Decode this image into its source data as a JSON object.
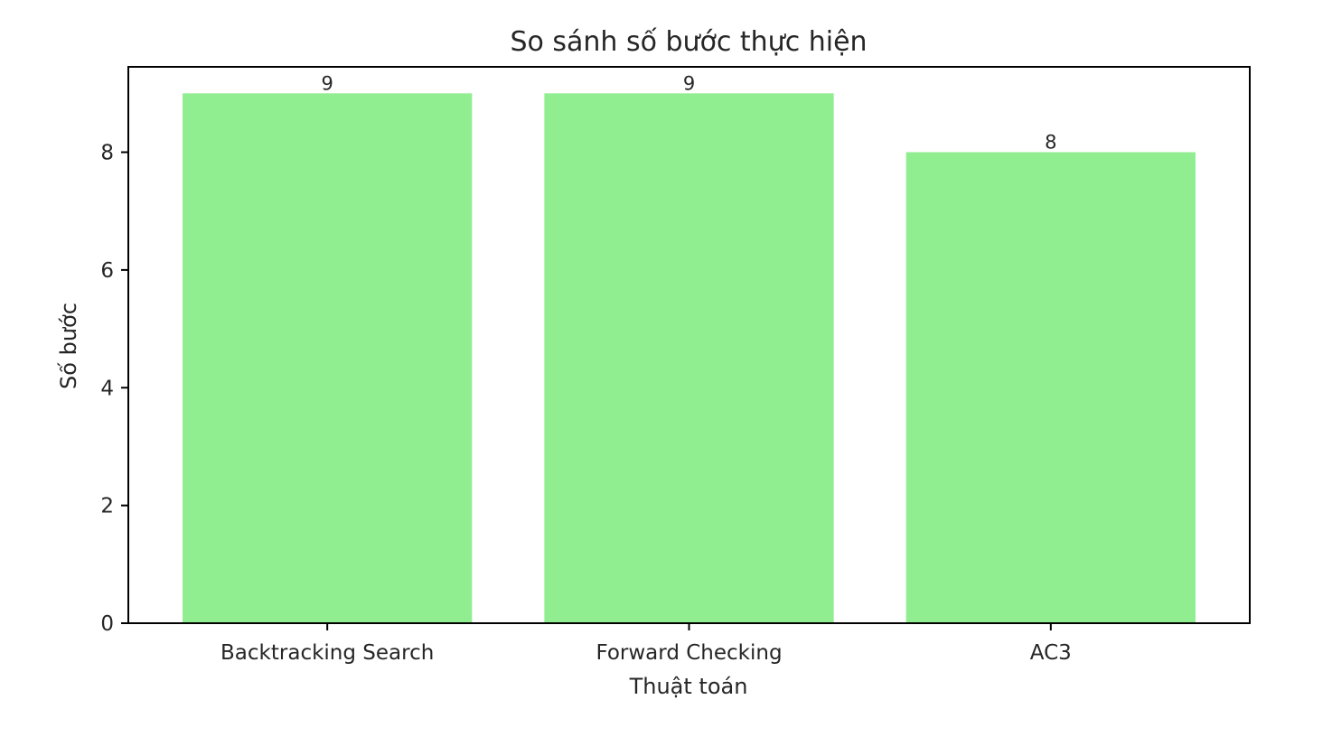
{
  "chart_data": {
    "type": "bar",
    "title": "So sánh số bước thực hiện",
    "xlabel": "Thuật toán",
    "ylabel": "Số bước",
    "categories": [
      "Backtracking Search",
      "Forward Checking",
      "AC3"
    ],
    "values": [
      9,
      9,
      8
    ],
    "data_labels": [
      "9",
      "9",
      "8"
    ],
    "ylim": [
      0,
      9.45
    ],
    "yticks": [
      0,
      2,
      4,
      6,
      8
    ],
    "ytick_labels": [
      "0",
      "2",
      "4",
      "6",
      "8"
    ],
    "grid": false,
    "bar_color": "#90ee90",
    "axis_color": "#000000",
    "text_color": "#262626"
  }
}
